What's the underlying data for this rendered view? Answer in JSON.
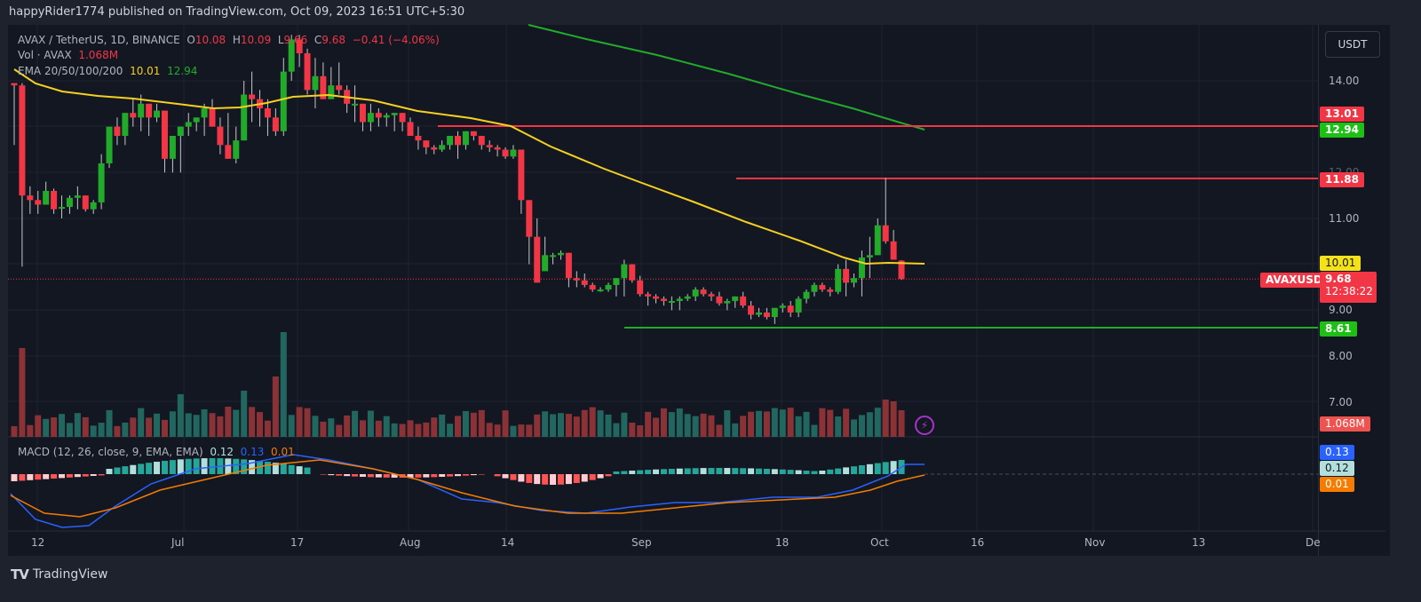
{
  "header": {
    "published": "happyRider1774 published on TradingView.com, Oct 09, 2023 16:51 UTC+5:30"
  },
  "legend": {
    "symbol": "AVAX / TetherUS, 1D, BINANCE",
    "o_label": "O",
    "o": "10.08",
    "h_label": "H",
    "h": "10.09",
    "l_label": "L",
    "l": "9.66",
    "c_label": "C",
    "c": "9.68",
    "change": "−0.41 (−4.06%)",
    "vol_label": "Vol · AVAX",
    "vol": "1.068M",
    "ema_label": "EMA 20/50/100/200",
    "ema1": "10.01",
    "ema2": "12.94",
    "macd_label": "MACD (12, 26, close, 9, EMA, EMA)",
    "macd_hist": "0.12",
    "macd_line": "0.13",
    "macd_signal": "0.01"
  },
  "currency_button": "USDT",
  "price_axis": {
    "ticks": [
      "14.00",
      "13.00",
      "12.00",
      "11.00",
      "10.00",
      "9.00",
      "8.00",
      "7.00"
    ]
  },
  "price_tags": {
    "r1": "13.01",
    "ema200": "12.94",
    "r2": "11.88",
    "ema50": "10.01",
    "symbol_tag": "AVAXUSDT",
    "last": "9.68",
    "countdown": "12:38:22",
    "s1": "8.61",
    "volume": "1.068M",
    "macd": "0.13",
    "hist": "0.12",
    "signal": "0.01"
  },
  "time_axis": {
    "ticks": [
      "12",
      "Jul",
      "17",
      "Aug",
      "14",
      "Sep",
      "18",
      "Oct",
      "16",
      "Nov",
      "13",
      "De"
    ]
  },
  "footer": {
    "brand": "TradingView"
  },
  "colors": {
    "up": "#22ab2a",
    "down": "#f23645",
    "ema50": "#f5d020",
    "ema200": "#22ab2a",
    "resistance": "#f23645",
    "support": "#22ab2a",
    "vol_up": "#22675f",
    "vol_down": "#8a3236",
    "macd": "#2962ff",
    "signal": "#f57c00"
  },
  "chart_data": {
    "type": "candlestick",
    "title": "AVAX / TetherUS, 1D, BINANCE",
    "xlabel": "",
    "ylabel": "USDT",
    "ylim": [
      6.4,
      15.0
    ],
    "x_ticks": [
      "12",
      "Jul",
      "17",
      "Aug",
      "14",
      "Sep",
      "18",
      "Oct",
      "16",
      "Nov",
      "13",
      "De"
    ],
    "horizontal_levels": [
      {
        "name": "resistance",
        "value": 13.01,
        "color": "#f23645"
      },
      {
        "name": "resistance",
        "value": 11.88,
        "color": "#f23645"
      },
      {
        "name": "support",
        "value": 8.61,
        "color": "#22ab2a"
      }
    ],
    "ohlc": [
      [
        13.95,
        13.95,
        12.6,
        13.9
      ],
      [
        13.9,
        13.95,
        9.95,
        11.5
      ],
      [
        11.5,
        11.7,
        11.1,
        11.4
      ],
      [
        11.4,
        11.6,
        11.1,
        11.3
      ],
      [
        11.3,
        11.8,
        11.3,
        11.6
      ],
      [
        11.6,
        11.65,
        11.1,
        11.2
      ],
      [
        11.25,
        11.5,
        11.0,
        11.25
      ],
      [
        11.25,
        11.5,
        11.1,
        11.45
      ],
      [
        11.45,
        11.7,
        11.2,
        11.5
      ],
      [
        11.5,
        11.5,
        11.15,
        11.2
      ],
      [
        11.2,
        11.4,
        11.1,
        11.35
      ],
      [
        11.35,
        12.4,
        11.2,
        12.2
      ],
      [
        12.2,
        12.9,
        12.1,
        13.0
      ],
      [
        13.0,
        13.2,
        12.6,
        12.8
      ],
      [
        12.8,
        13.3,
        12.6,
        13.3
      ],
      [
        13.3,
        13.6,
        13.0,
        13.2
      ],
      [
        13.2,
        13.7,
        12.9,
        13.5
      ],
      [
        13.5,
        13.5,
        12.8,
        13.2
      ],
      [
        13.2,
        13.5,
        13.1,
        13.35
      ],
      [
        13.35,
        13.0,
        12.0,
        12.3
      ],
      [
        12.3,
        12.7,
        12.0,
        12.8
      ],
      [
        12.8,
        13.0,
        12.0,
        13.0
      ],
      [
        13.0,
        13.3,
        12.8,
        13.1
      ],
      [
        13.1,
        13.2,
        12.9,
        13.2
      ],
      [
        13.2,
        13.5,
        12.8,
        13.4
      ],
      [
        13.4,
        13.6,
        13.0,
        13.0
      ],
      [
        13.0,
        13.2,
        12.4,
        12.6
      ],
      [
        12.6,
        13.3,
        12.3,
        12.3
      ],
      [
        12.3,
        13.0,
        12.2,
        12.7
      ],
      [
        12.7,
        14.0,
        12.7,
        13.7
      ],
      [
        13.7,
        14.2,
        13.1,
        13.6
      ],
      [
        13.6,
        13.8,
        13.0,
        13.4
      ],
      [
        13.4,
        13.6,
        12.8,
        13.2
      ],
      [
        13.2,
        13.4,
        12.8,
        12.9
      ],
      [
        12.9,
        14.5,
        12.8,
        14.2
      ],
      [
        14.2,
        15.0,
        14.0,
        14.9
      ],
      [
        14.9,
        15.0,
        14.3,
        14.6
      ],
      [
        14.6,
        14.7,
        13.7,
        13.8
      ],
      [
        13.8,
        14.5,
        13.4,
        14.1
      ],
      [
        14.1,
        14.4,
        13.6,
        13.6
      ],
      [
        13.6,
        14.3,
        13.6,
        13.9
      ],
      [
        13.9,
        14.4,
        13.7,
        13.8
      ],
      [
        13.8,
        13.9,
        13.3,
        13.5
      ],
      [
        13.5,
        13.9,
        13.1,
        13.5
      ],
      [
        13.5,
        13.5,
        12.9,
        13.1
      ],
      [
        13.1,
        13.5,
        12.9,
        13.3
      ],
      [
        13.3,
        13.4,
        13.0,
        13.2
      ],
      [
        13.2,
        13.3,
        13.0,
        13.25
      ],
      [
        13.25,
        13.3,
        12.9,
        13.3
      ],
      [
        13.3,
        13.3,
        12.9,
        13.1
      ],
      [
        13.1,
        13.2,
        12.8,
        12.8
      ],
      [
        12.8,
        13.0,
        12.5,
        12.7
      ],
      [
        12.7,
        12.7,
        12.4,
        12.55
      ],
      [
        12.55,
        12.6,
        12.4,
        12.5
      ],
      [
        12.5,
        12.7,
        12.45,
        12.6
      ],
      [
        12.6,
        12.8,
        12.5,
        12.8
      ],
      [
        12.8,
        12.9,
        12.3,
        12.6
      ],
      [
        12.6,
        12.9,
        12.5,
        12.9
      ],
      [
        12.9,
        12.9,
        12.7,
        12.8
      ],
      [
        12.8,
        12.8,
        12.5,
        12.6
      ],
      [
        12.6,
        12.7,
        12.45,
        12.55
      ],
      [
        12.55,
        12.6,
        12.35,
        12.5
      ],
      [
        12.5,
        12.55,
        12.3,
        12.35
      ],
      [
        12.35,
        12.6,
        12.3,
        12.5
      ],
      [
        12.5,
        12.5,
        11.1,
        11.4
      ],
      [
        11.4,
        11.4,
        10.0,
        10.6
      ],
      [
        10.6,
        11.0,
        9.8,
        9.6
      ],
      [
        9.85,
        10.6,
        9.95,
        10.2
      ],
      [
        10.2,
        10.25,
        10.0,
        10.2
      ],
      [
        10.2,
        10.3,
        10.1,
        10.25
      ],
      [
        10.25,
        10.25,
        9.5,
        9.7
      ],
      [
        9.7,
        9.85,
        9.5,
        9.65
      ],
      [
        9.65,
        9.8,
        9.5,
        9.55
      ],
      [
        9.55,
        9.6,
        9.4,
        9.45
      ],
      [
        9.45,
        9.5,
        9.4,
        9.45
      ],
      [
        9.45,
        9.6,
        9.4,
        9.55
      ],
      [
        9.55,
        9.7,
        9.3,
        9.7
      ],
      [
        9.7,
        10.1,
        9.3,
        10.0
      ],
      [
        10.0,
        10.0,
        9.6,
        9.65
      ],
      [
        9.65,
        9.75,
        9.3,
        9.35
      ],
      [
        9.35,
        9.4,
        9.1,
        9.3
      ],
      [
        9.3,
        9.35,
        9.15,
        9.25
      ],
      [
        9.25,
        9.3,
        9.1,
        9.2
      ],
      [
        9.2,
        9.3,
        9.0,
        9.2
      ],
      [
        9.2,
        9.3,
        9.0,
        9.25
      ],
      [
        9.25,
        9.35,
        9.2,
        9.3
      ],
      [
        9.3,
        9.5,
        9.2,
        9.45
      ],
      [
        9.45,
        9.5,
        9.3,
        9.35
      ],
      [
        9.35,
        9.4,
        9.2,
        9.3
      ],
      [
        9.3,
        9.4,
        9.1,
        9.15
      ],
      [
        9.15,
        9.25,
        9.0,
        9.2
      ],
      [
        9.2,
        9.3,
        9.05,
        9.3
      ],
      [
        9.3,
        9.4,
        9.05,
        9.1
      ],
      [
        9.1,
        9.2,
        8.8,
        8.9
      ],
      [
        8.9,
        9.05,
        8.85,
        8.95
      ],
      [
        8.95,
        9.05,
        8.8,
        8.85
      ],
      [
        8.85,
        9.05,
        8.7,
        9.05
      ],
      [
        9.05,
        9.15,
        8.95,
        9.1
      ],
      [
        9.1,
        9.2,
        8.85,
        8.95
      ],
      [
        8.95,
        9.3,
        8.85,
        9.25
      ],
      [
        9.25,
        9.45,
        9.15,
        9.4
      ],
      [
        9.4,
        9.6,
        9.3,
        9.55
      ],
      [
        9.55,
        9.6,
        9.4,
        9.45
      ],
      [
        9.45,
        9.5,
        9.3,
        9.4
      ],
      [
        9.4,
        10.0,
        9.35,
        9.9
      ],
      [
        9.9,
        10.1,
        9.3,
        9.6
      ],
      [
        9.6,
        9.8,
        9.5,
        9.7
      ],
      [
        9.7,
        10.3,
        9.3,
        10.15
      ],
      [
        10.15,
        10.6,
        9.7,
        10.2
      ],
      [
        10.2,
        11.0,
        10.2,
        10.85
      ],
      [
        10.85,
        11.88,
        10.45,
        10.5
      ],
      [
        10.5,
        10.75,
        10.1,
        10.1
      ],
      [
        10.08,
        10.09,
        9.66,
        9.68
      ]
    ],
    "series": [
      {
        "name": "EMA 50",
        "last": 10.01,
        "color": "#f5d020"
      },
      {
        "name": "EMA 200",
        "last": 12.94,
        "color": "#22ab2a"
      },
      {
        "name": "MACD",
        "last": 0.13,
        "color": "#2962ff"
      },
      {
        "name": "Signal",
        "last": 0.01,
        "color": "#f57c00"
      },
      {
        "name": "Histogram",
        "last": 0.12
      }
    ]
  }
}
